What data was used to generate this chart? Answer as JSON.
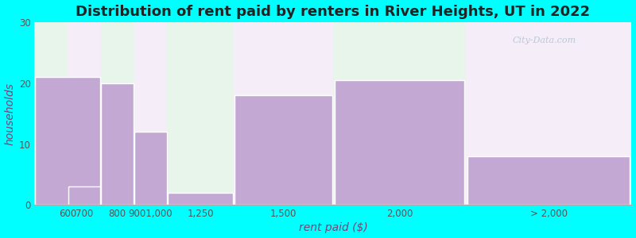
{
  "title": "Distribution of rent paid by renters in River Heights, UT in 2022",
  "xlabel": "rent paid ($)",
  "ylabel": "households",
  "background_outer": "#00FFFF",
  "bar_color": "#c4a8d4",
  "ylim": [
    0,
    30
  ],
  "yticks": [
    0,
    10,
    20,
    30
  ],
  "tick_labels_x": [
    "600",
    "700",
    "800",
    "9001,000",
    "1,250",
    "1,500",
    "2,000",
    "> 2,000"
  ],
  "values": [
    21,
    3,
    20,
    12,
    2,
    18,
    20.5,
    8
  ],
  "title_fontsize": 13,
  "axis_label_fontsize": 10,
  "tick_fontsize": 8.5,
  "watermark": "City-Data.com",
  "x_positions": [
    0,
    1,
    2,
    3,
    4,
    6,
    9,
    13
  ],
  "bar_widths": [
    2,
    1,
    1,
    1,
    2,
    3,
    4,
    5
  ],
  "bg_colors": [
    "#e8f5eb",
    "#f5edf8",
    "#e8f5eb",
    "#f5edf8",
    "#e8f5eb",
    "#f5edf8",
    "#e8f5eb",
    "#f5edf8"
  ],
  "xlim": [
    0,
    18
  ]
}
